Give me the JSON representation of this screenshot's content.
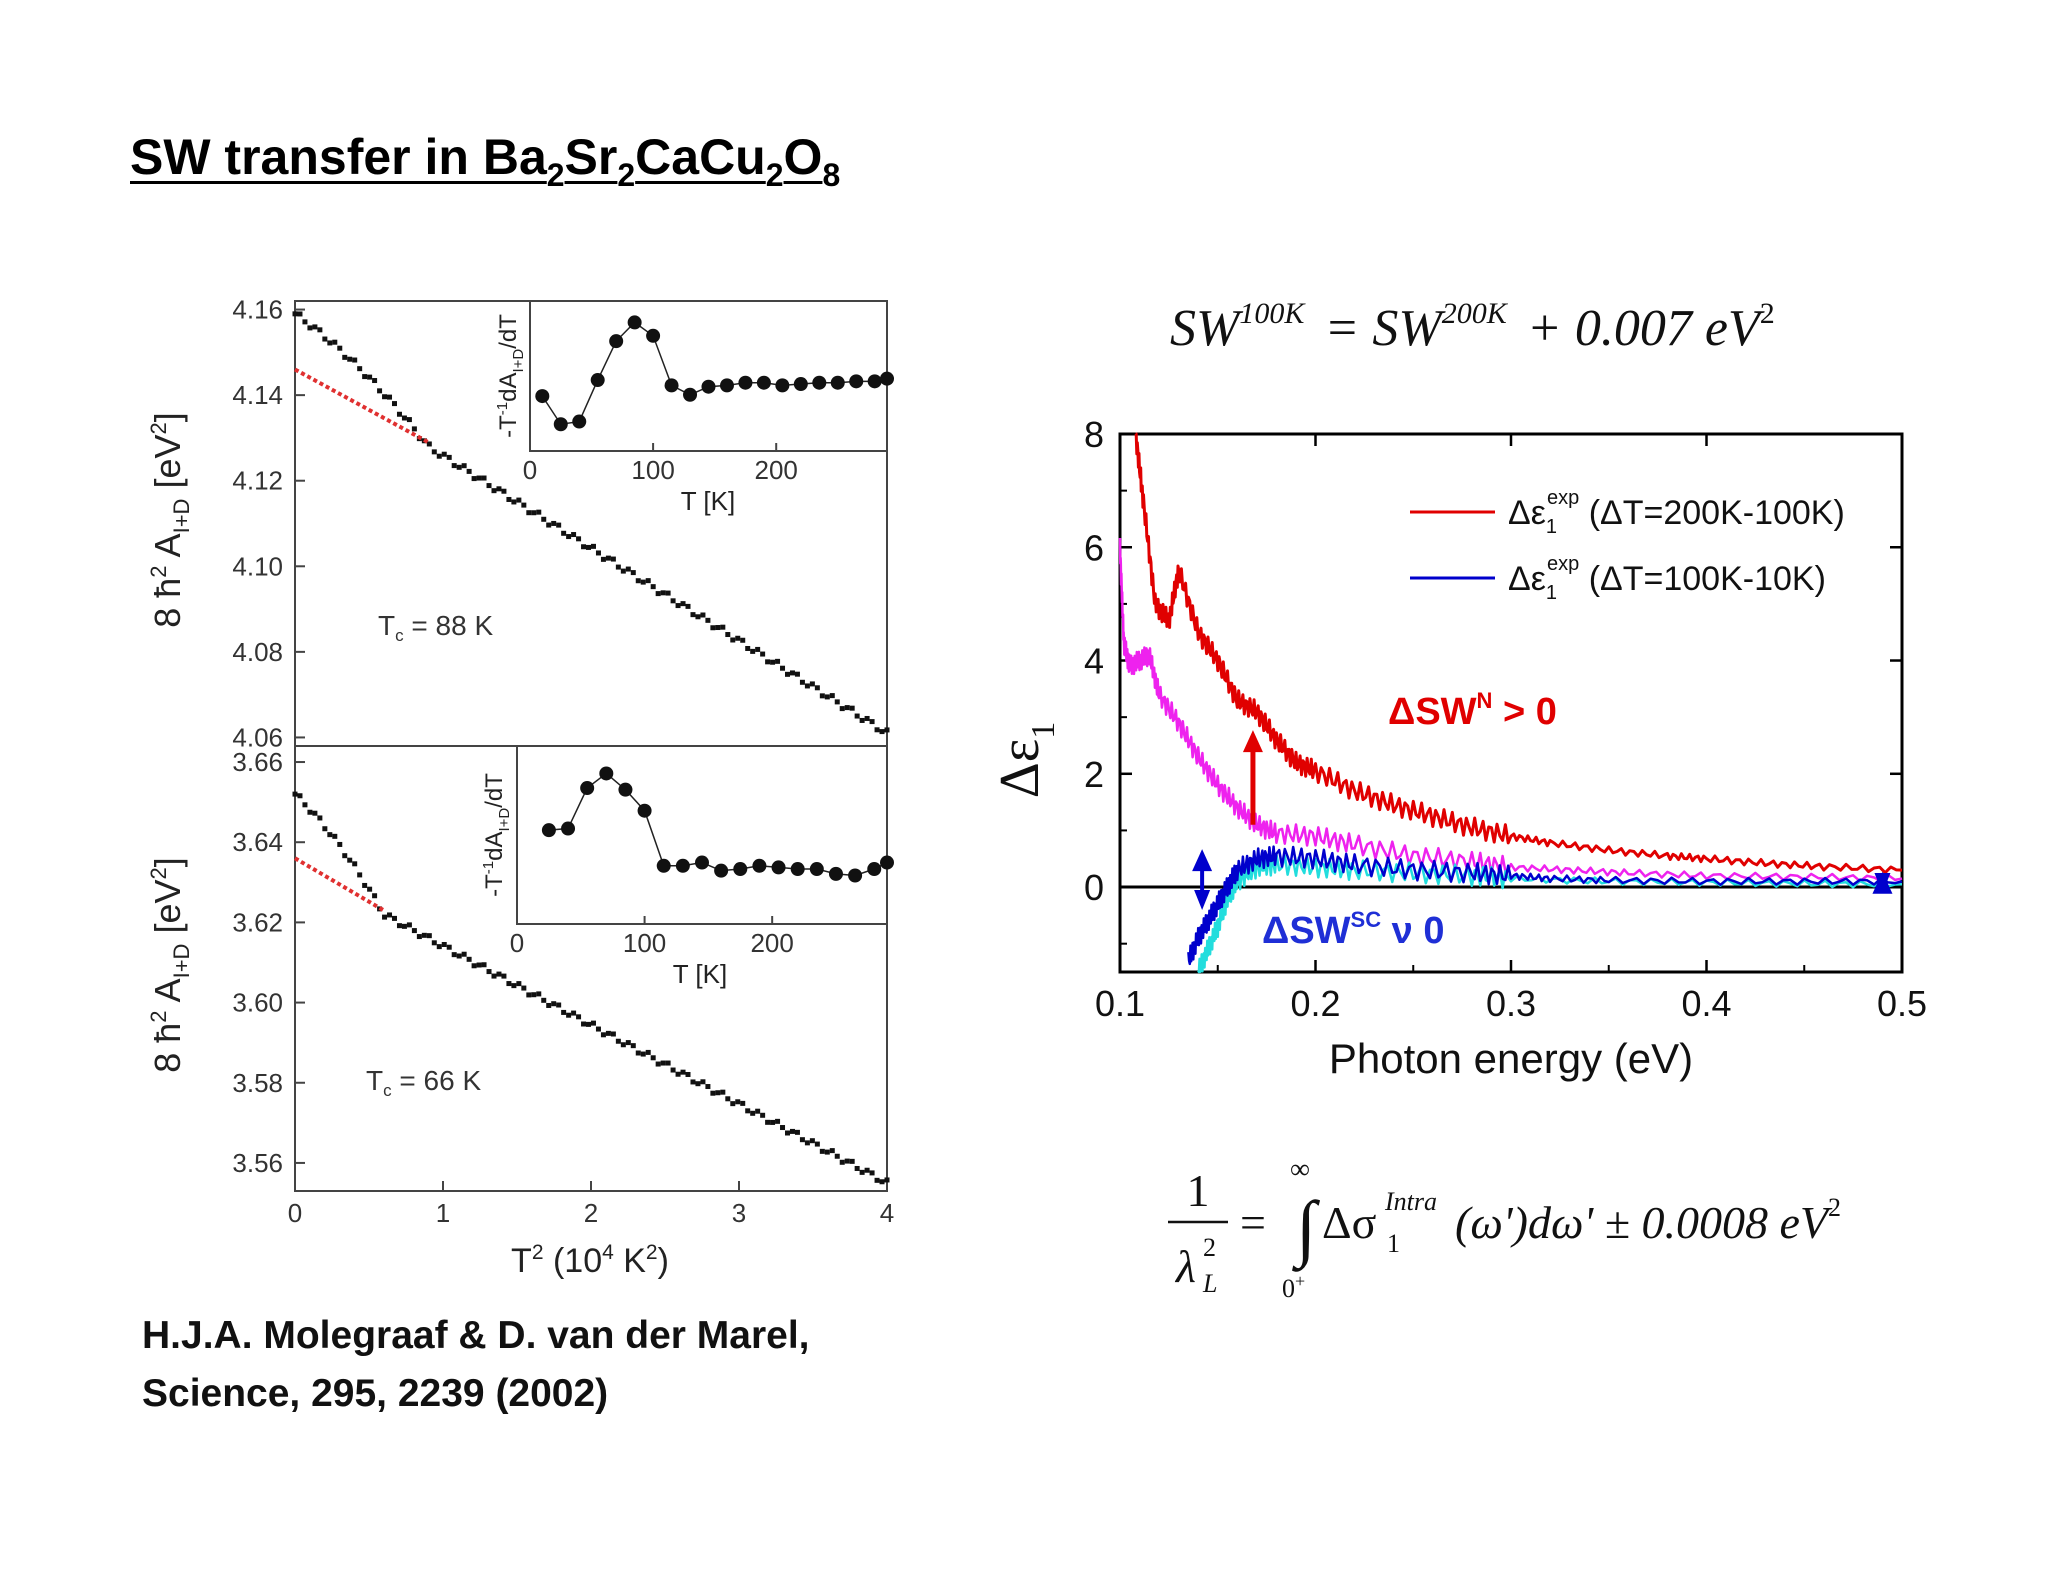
{
  "title": {
    "prefix": "SW transfer in Ba",
    "s1": "2",
    "t1": "Sr",
    "s2": "2",
    "t2": "CaCu",
    "s3": "2",
    "t3": "O",
    "s4": "8"
  },
  "citation": {
    "line1": "H.J.A. Molegraaf & D. van der Marel,",
    "line2": "Science, 295, 2239 (2002)"
  },
  "equations": {
    "sw_eq": {
      "lhs": "SW",
      "lhs_sup": "100K",
      "eq": "= SW",
      "rhs_sup": "200K",
      "rest": "+ 0.007 eV",
      "rest_sup": "2"
    },
    "lambda_eq": {
      "num": "1",
      "den": "λ",
      "den_sub": "L",
      "den_sup": "2",
      "eq": "=",
      "upper": "∞",
      "lower": "0",
      "lower_sup": "+",
      "body": "Δσ",
      "body_sub": "1",
      "body_sup": "Intra",
      "arg": "(ω')dω' ± 0.0008 eV",
      "arg_sup": "2"
    }
  },
  "chart_data": [
    {
      "id": "top-left",
      "type": "scatter",
      "xlabel": "T² (10⁴ K²)",
      "ylabel": "8 ħ² A_I+D [eV²]",
      "ylabel_main": "8 ħ",
      "ylabel_sup": "2",
      "ylabel_A": " A",
      "ylabel_sub": "I+D",
      "ylabel_unit": " [eV",
      "ylabel_unit_sup": "2",
      "ylabel_close": "]",
      "xlim": [
        0,
        4
      ],
      "ylim": [
        4.058,
        4.162
      ],
      "yticks": [
        4.16,
        4.14,
        4.12,
        4.1,
        4.08,
        4.06
      ],
      "ytick_labels": [
        "4.16",
        "4.14",
        "4.12",
        "4.10",
        "4.08",
        "4.06"
      ],
      "annotation": "T",
      "annotation_sub": "c",
      "annotation_rest": " = 88 K",
      "dots": {
        "x0": 0.0,
        "x1": 4.0,
        "n": 120,
        "y_start": 4.159,
        "y_kink": 4.128,
        "x_kink": 0.9,
        "y_end": 4.061
      },
      "fit": {
        "x": [
          0.0,
          0.9
        ],
        "y": [
          4.146,
          4.129
        ]
      },
      "inset": {
        "xlabel": "T [K]",
        "ylabel": "-T⁻¹dA_I+D/dT",
        "ylabel_a": "-T",
        "ylabel_sup": "-1",
        "ylabel_b": "dA",
        "ylabel_sub": "I+D",
        "ylabel_c": "/dT",
        "xlim": [
          0,
          290
        ],
        "xticks": [
          0,
          100,
          200
        ],
        "xtick_labels": [
          "0",
          "100",
          "200"
        ],
        "ylim": [
          0,
          10
        ],
        "points": {
          "x": [
            10,
            25,
            40,
            55,
            70,
            85,
            100,
            115,
            130,
            145,
            160,
            175,
            190,
            205,
            220,
            235,
            250,
            265,
            280,
            290
          ],
          "y": [
            3.5,
            1.4,
            1.6,
            4.7,
            7.6,
            9.0,
            8.0,
            4.3,
            3.6,
            4.2,
            4.3,
            4.5,
            4.5,
            4.3,
            4.4,
            4.5,
            4.5,
            4.6,
            4.6,
            4.8
          ]
        }
      }
    },
    {
      "id": "bottom-left",
      "type": "scatter",
      "xlabel": "T² (10⁴ K²)",
      "xlabel_main": "T",
      "xlabel_sup": "2",
      "xlabel_rest": " (10",
      "xlabel_sup2": "4",
      "xlabel_rest2": " K",
      "xlabel_sup3": "2",
      "xlabel_close": ")",
      "ylabel_main": "8 ħ",
      "ylabel_sup": "2",
      "ylabel_A": " A",
      "ylabel_sub": "I+D",
      "ylabel_unit": " [eV",
      "ylabel_unit_sup": "2",
      "ylabel_close": "]",
      "xlim": [
        0,
        4
      ],
      "xticks": [
        0,
        1,
        2,
        3,
        4
      ],
      "xtick_labels": [
        "0",
        "1",
        "2",
        "3",
        "4"
      ],
      "ylim": [
        3.553,
        3.664
      ],
      "yticks": [
        3.66,
        3.64,
        3.62,
        3.6,
        3.58,
        3.56
      ],
      "ytick_labels": [
        "3.66",
        "3.64",
        "3.62",
        "3.60",
        "3.58",
        "3.56"
      ],
      "annotation": "T",
      "annotation_sub": "c",
      "annotation_rest": " = 66 K",
      "dots": {
        "x0": 0.0,
        "x1": 4.0,
        "n": 120,
        "y_start": 3.652,
        "y_kink": 3.622,
        "x_kink": 0.6,
        "y_end": 3.555
      },
      "fit": {
        "x": [
          0.0,
          0.6
        ],
        "y": [
          3.636,
          3.623
        ]
      },
      "inset": {
        "xlabel": "T [K]",
        "ylabel_a": "-T",
        "ylabel_sup": "-1",
        "ylabel_b": "dA",
        "ylabel_sub": "I+D",
        "ylabel_c": "/dT",
        "xlim": [
          0,
          290
        ],
        "xticks": [
          0,
          100,
          200
        ],
        "xtick_labels": [
          "0",
          "100",
          "200"
        ],
        "ylim": [
          0,
          10
        ],
        "points": {
          "x": [
            25,
            40,
            55,
            70,
            85,
            100,
            115,
            130,
            145,
            160,
            175,
            190,
            205,
            220,
            235,
            250,
            265,
            280,
            290
          ],
          "y": [
            5.3,
            5.4,
            7.9,
            8.8,
            7.8,
            6.5,
            3.1,
            3.1,
            3.3,
            2.8,
            2.9,
            3.1,
            3.0,
            2.9,
            2.9,
            2.6,
            2.5,
            2.9,
            3.3
          ]
        }
      }
    },
    {
      "id": "right",
      "type": "line",
      "xlabel": "Photon energy (eV)",
      "ylabel": "Δε",
      "ylabel_sub": "1",
      "xlim": [
        0.1,
        0.5
      ],
      "ylim": [
        -1.5,
        8
      ],
      "xticks": [
        0.1,
        0.2,
        0.3,
        0.4,
        0.5
      ],
      "xtick_labels": [
        "0.1",
        "0.2",
        "0.3",
        "0.4",
        "0.5"
      ],
      "yticks": [
        0,
        2,
        4,
        6,
        8
      ],
      "ytick_labels": [
        "0",
        "2",
        "4",
        "6",
        "8"
      ],
      "series": [
        {
          "name": "Δε₁ᵉˣᵖ (ΔT=200K-100K)",
          "legend_a": "Δε",
          "legend_sub": "1",
          "legend_sup": "exp",
          "legend_b": " (ΔT=200K-100K)",
          "color": "#e00000",
          "x": [
            0.108,
            0.112,
            0.118,
            0.125,
            0.13,
            0.14,
            0.15,
            0.16,
            0.17,
            0.18,
            0.19,
            0.2,
            0.22,
            0.24,
            0.26,
            0.28,
            0.3,
            0.32,
            0.35,
            0.38,
            0.4,
            0.43,
            0.46,
            0.5
          ],
          "y": [
            8.0,
            6.8,
            5.0,
            4.7,
            5.6,
            4.5,
            4.0,
            3.3,
            3.1,
            2.6,
            2.2,
            2.05,
            1.7,
            1.45,
            1.25,
            1.05,
            0.9,
            0.78,
            0.65,
            0.55,
            0.5,
            0.42,
            0.36,
            0.3
          ]
        },
        {
          "name": "Δε₁ᵉˣᵖ (ΔT=100K-10K)",
          "legend_a": "Δε",
          "legend_sub": "1",
          "legend_sup": "exp",
          "legend_b": " (ΔT=100K-10K)",
          "color": "#0000cc",
          "x": [
            0.135,
            0.14,
            0.145,
            0.15,
            0.155,
            0.16,
            0.17,
            0.18,
            0.2,
            0.22,
            0.25,
            0.28,
            0.3,
            0.32,
            0.35,
            0.4,
            0.45,
            0.5
          ],
          "y": [
            -1.3,
            -0.9,
            -0.6,
            -0.3,
            0.0,
            0.3,
            0.5,
            0.55,
            0.5,
            0.4,
            0.3,
            0.25,
            0.2,
            0.15,
            0.12,
            0.1,
            0.1,
            0.1
          ]
        },
        {
          "name": "magenta",
          "color": "#ee22ee",
          "x": [
            0.1,
            0.102,
            0.105,
            0.11,
            0.115,
            0.12,
            0.13,
            0.14,
            0.15,
            0.16,
            0.17,
            0.18,
            0.2,
            0.22,
            0.25,
            0.28,
            0.3,
            0.33,
            0.36,
            0.4,
            0.45,
            0.5
          ],
          "y": [
            6.0,
            4.3,
            3.9,
            4.0,
            4.1,
            3.4,
            2.9,
            2.3,
            1.8,
            1.4,
            1.1,
            0.95,
            0.9,
            0.75,
            0.55,
            0.45,
            0.35,
            0.3,
            0.25,
            0.2,
            0.18,
            0.15
          ]
        },
        {
          "name": "cyan",
          "color": "#22dddd",
          "x": [
            0.14,
            0.145,
            0.15,
            0.155,
            0.16,
            0.17,
            0.18,
            0.2,
            0.22,
            0.25,
            0.28,
            0.3,
            0.35,
            0.4,
            0.45,
            0.5
          ],
          "y": [
            -1.5,
            -1.1,
            -0.7,
            -0.2,
            0.1,
            0.35,
            0.4,
            0.35,
            0.3,
            0.25,
            0.2,
            0.15,
            0.1,
            0.08,
            0.06,
            0.05
          ]
        }
      ],
      "annotations": {
        "swn_a": "ΔSW",
        "swn_sup": "N",
        "swn_b": " > 0",
        "swn_color": "#e00000",
        "swsc_a": "ΔSW",
        "swsc_sup": "SC",
        "swsc_b": " ν 0",
        "swsc_color": "#1f2fd6"
      },
      "arrows": [
        {
          "x": 0.168,
          "y_from": 1.1,
          "y_to": 2.7,
          "color": "#e00000"
        },
        {
          "x": 0.142,
          "y_from": -0.3,
          "y_to": 0.6,
          "color": "#0000cc"
        },
        {
          "x": 0.49,
          "y_from": 0.0,
          "y_to": 0.2,
          "color": "#0000cc"
        }
      ]
    }
  ]
}
